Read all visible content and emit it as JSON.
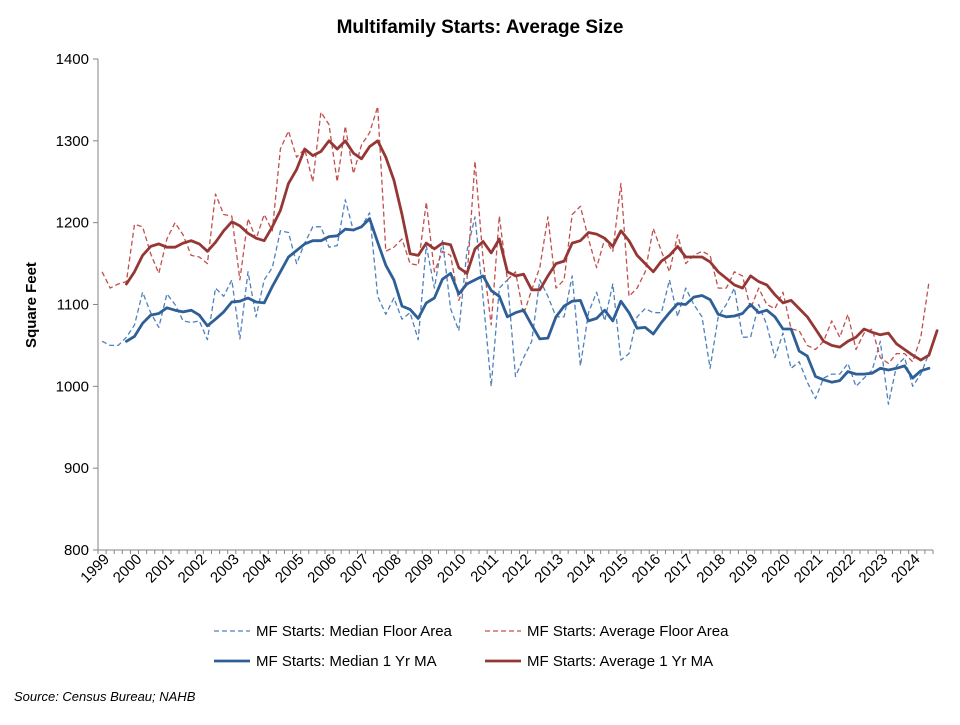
{
  "chart_data": {
    "type": "line",
    "title": "Multifamily Starts: Average Size",
    "ylabel": "Square Feet",
    "xlabel": "",
    "ylim": [
      800,
      1400
    ],
    "yticks": [
      800,
      900,
      1000,
      1100,
      1200,
      1300,
      1400
    ],
    "x_start_year": 1999,
    "x_end_year": 2024,
    "xtick_labels": [
      "1999",
      "2000",
      "2001",
      "2002",
      "2003",
      "2004",
      "2005",
      "2006",
      "2007",
      "2008",
      "2009",
      "2010",
      "2011",
      "2012",
      "2013",
      "2014",
      "2015",
      "2016",
      "2017",
      "2018",
      "2019",
      "2020",
      "2021",
      "2022",
      "2023",
      "2024"
    ],
    "grid": false,
    "legend_placement": "bottom",
    "source": "Source: Census Bureau; NAHB",
    "series": [
      {
        "name": "MF Starts: Median Floor Area",
        "style": "dashed",
        "color": "#4F81BD",
        "values": [
          1055,
          1050,
          1050,
          1060,
          1075,
          1115,
          1090,
          1072,
          1113,
          1100,
          1080,
          1078,
          1080,
          1057,
          1120,
          1110,
          1130,
          1058,
          1140,
          1085,
          1130,
          1145,
          1190,
          1188,
          1150,
          1175,
          1195,
          1195,
          1170,
          1172,
          1228,
          1190,
          1195,
          1212,
          1110,
          1088,
          1108,
          1082,
          1090,
          1057,
          1172,
          1120,
          1178,
          1095,
          1068,
          1165,
          1207,
          1108,
          1000,
          1120,
          1130,
          1012,
          1035,
          1055,
          1130,
          1110,
          1085,
          1085,
          1135,
          1025,
          1090,
          1115,
          1080,
          1125,
          1032,
          1040,
          1085,
          1095,
          1090,
          1090,
          1130,
          1085,
          1120,
          1100,
          1085,
          1022,
          1085,
          1100,
          1120,
          1060,
          1060,
          1100,
          1075,
          1035,
          1065,
          1022,
          1030,
          1005,
          985,
          1010,
          1015,
          1015,
          1028,
          1000,
          1010,
          1020,
          1055,
          978,
          1025,
          1035,
          1000,
          1015,
          1040
        ]
      },
      {
        "name": "MF Starts: Average Floor Area",
        "style": "dashed",
        "color": "#C0504D",
        "values": [
          1140,
          1120,
          1125,
          1128,
          1198,
          1195,
          1162,
          1138,
          1180,
          1200,
          1185,
          1160,
          1158,
          1150,
          1235,
          1210,
          1208,
          1130,
          1205,
          1180,
          1210,
          1190,
          1290,
          1312,
          1280,
          1290,
          1250,
          1335,
          1320,
          1250,
          1318,
          1260,
          1295,
          1310,
          1342,
          1165,
          1170,
          1180,
          1150,
          1148,
          1225,
          1140,
          1165,
          1160,
          1105,
          1130,
          1275,
          1155,
          1075,
          1208,
          1130,
          1140,
          1088,
          1118,
          1145,
          1207,
          1120,
          1130,
          1210,
          1220,
          1180,
          1145,
          1180,
          1165,
          1248,
          1110,
          1120,
          1140,
          1193,
          1165,
          1140,
          1185,
          1150,
          1160,
          1165,
          1160,
          1120,
          1120,
          1140,
          1135,
          1095,
          1120,
          1100,
          1095,
          1115,
          1070,
          1068,
          1050,
          1045,
          1055,
          1080,
          1060,
          1088,
          1045,
          1065,
          1070,
          1035,
          1028,
          1040,
          1040,
          1030,
          1060,
          1127
        ]
      },
      {
        "name": "MF Starts: Median 1 Yr MA",
        "style": "solid",
        "color": "#2E5F96",
        "values": [
          null,
          null,
          null,
          1055,
          1061,
          1077,
          1087,
          1089,
          1096,
          1093,
          1091,
          1093,
          1087,
          1074,
          1082,
          1091,
          1103,
          1104,
          1108,
          1103,
          1102,
          1122,
          1140,
          1158,
          1166,
          1174,
          1178,
          1178,
          1183,
          1184,
          1192,
          1191,
          1195,
          1205,
          1176,
          1148,
          1130,
          1098,
          1094,
          1083,
          1102,
          1108,
          1131,
          1138,
          1113,
          1125,
          1130,
          1135,
          1117,
          1110,
          1085,
          1090,
          1093,
          1075,
          1058,
          1059,
          1085,
          1098,
          1104,
          1105,
          1080,
          1083,
          1093,
          1080,
          1104,
          1090,
          1071,
          1072,
          1064,
          1078,
          1090,
          1101,
          1100,
          1109,
          1111,
          1106,
          1088,
          1085,
          1086,
          1089,
          1100,
          1090,
          1093,
          1085,
          1070,
          1070,
          1043,
          1037,
          1012,
          1008,
          1005,
          1007,
          1018,
          1015,
          1015,
          1016,
          1022,
          1020,
          1022,
          1025,
          1010,
          1019,
          1022
        ]
      },
      {
        "name": "MF Starts: Average 1 Yr MA",
        "style": "solid",
        "color": "#953735",
        "values": [
          null,
          null,
          null,
          1125,
          1140,
          1160,
          1171,
          1174,
          1170,
          1170,
          1175,
          1178,
          1174,
          1165,
          1176,
          1190,
          1201,
          1196,
          1187,
          1181,
          1178,
          1195,
          1215,
          1248,
          1265,
          1290,
          1282,
          1287,
          1300,
          1290,
          1300,
          1285,
          1278,
          1293,
          1300,
          1280,
          1252,
          1210,
          1162,
          1160,
          1175,
          1168,
          1175,
          1173,
          1145,
          1138,
          1168,
          1177,
          1163,
          1180,
          1140,
          1135,
          1137,
          1118,
          1118,
          1135,
          1150,
          1153,
          1175,
          1178,
          1188,
          1186,
          1181,
          1171,
          1190,
          1178,
          1160,
          1150,
          1140,
          1153,
          1160,
          1171,
          1158,
          1158,
          1158,
          1152,
          1140,
          1132,
          1124,
          1120,
          1135,
          1128,
          1124,
          1112,
          1102,
          1105,
          1095,
          1085,
          1070,
          1055,
          1050,
          1048,
          1055,
          1060,
          1070,
          1066,
          1063,
          1065,
          1052,
          1045,
          1038,
          1032,
          1038,
          1068
        ]
      }
    ]
  }
}
